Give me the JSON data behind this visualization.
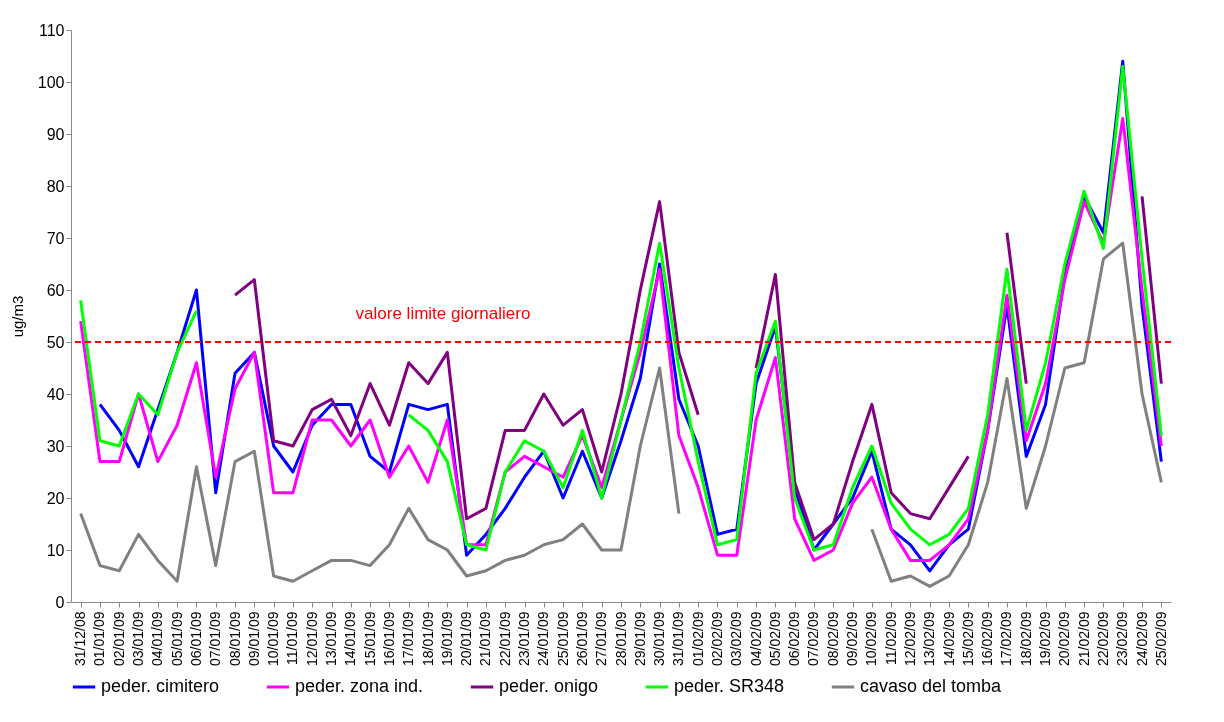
{
  "chart_data": {
    "type": "line",
    "ylabel": "ug/m3",
    "categories": [
      "31/12/08",
      "01/01/09",
      "02/01/09",
      "03/01/09",
      "04/01/09",
      "05/01/09",
      "06/01/09",
      "07/01/09",
      "08/01/09",
      "09/01/09",
      "10/01/09",
      "11/01/09",
      "12/01/09",
      "13/01/09",
      "14/01/09",
      "15/01/09",
      "16/01/09",
      "17/01/09",
      "18/01/09",
      "19/01/09",
      "20/01/09",
      "21/01/09",
      "22/01/09",
      "23/01/09",
      "24/01/09",
      "25/01/09",
      "26/01/09",
      "27/01/09",
      "28/01/09",
      "29/01/09",
      "30/01/09",
      "31/01/09",
      "01/02/09",
      "02/02/09",
      "03/02/09",
      "04/02/09",
      "05/02/09",
      "06/02/09",
      "07/02/09",
      "08/02/09",
      "09/02/09",
      "10/02/09",
      "11/02/09",
      "12/02/09",
      "13/02/09",
      "14/02/09",
      "15/02/09",
      "16/02/09",
      "17/02/09",
      "18/02/09",
      "19/02/09",
      "20/02/09",
      "21/02/09",
      "22/02/09",
      "23/02/09",
      "24/02/09",
      "25/02/09"
    ],
    "series": [
      {
        "name": "peder. cimitero",
        "color": "#0000ff",
        "values": [
          null,
          38,
          33,
          26,
          37,
          48,
          60,
          21,
          44,
          48,
          30,
          25,
          34,
          38,
          38,
          28,
          25,
          38,
          37,
          38,
          9,
          13,
          18,
          24,
          29,
          20,
          29,
          20,
          31,
          43,
          65,
          39,
          30,
          13,
          14,
          42,
          53,
          22,
          10,
          15,
          20,
          29,
          14,
          11,
          6,
          11,
          14,
          33,
          57,
          28,
          38,
          63,
          78,
          71,
          104,
          57,
          27
        ]
      },
      {
        "name": "peder. zona ind.",
        "color": "#ff00ff",
        "values": [
          54,
          27,
          27,
          40,
          27,
          34,
          46,
          24,
          41,
          48,
          21,
          21,
          35,
          35,
          30,
          35,
          24,
          30,
          23,
          35,
          11,
          11,
          25,
          28,
          26,
          24,
          32,
          22,
          35,
          48,
          64,
          32,
          22,
          9,
          9,
          35,
          47,
          16,
          8,
          10,
          19,
          24,
          14,
          8,
          8,
          11,
          16,
          33,
          59,
          31,
          42,
          62,
          77,
          69,
          93,
          60,
          30
        ]
      },
      {
        "name": "peder. onigo",
        "color": "#800080",
        "values": [
          null,
          null,
          null,
          null,
          null,
          null,
          null,
          null,
          59,
          62,
          31,
          30,
          37,
          39,
          32,
          42,
          34,
          46,
          42,
          48,
          16,
          18,
          33,
          33,
          40,
          34,
          37,
          25,
          40,
          60,
          77,
          48,
          36,
          null,
          null,
          45,
          63,
          23,
          12,
          15,
          27,
          38,
          21,
          17,
          16,
          22,
          28,
          null,
          71,
          42,
          null,
          null,
          null,
          null,
          null,
          78,
          42
        ]
      },
      {
        "name": "peder. SR348",
        "color": "#00ff00",
        "values": [
          58,
          31,
          30,
          40,
          36,
          48,
          56,
          null,
          null,
          null,
          null,
          null,
          null,
          null,
          null,
          null,
          null,
          36,
          33,
          27,
          11,
          10,
          25,
          31,
          29,
          22,
          33,
          20,
          35,
          50,
          69,
          45,
          27,
          11,
          12,
          44,
          54,
          20,
          10,
          11,
          22,
          30,
          19,
          14,
          11,
          13,
          18,
          36,
          64,
          33,
          46,
          65,
          79,
          68,
          103,
          66,
          32
        ]
      },
      {
        "name": "cavaso del tomba",
        "color": "#808080",
        "values": [
          17,
          7,
          6,
          13,
          8,
          4,
          26,
          7,
          27,
          29,
          5,
          4,
          6,
          8,
          8,
          7,
          11,
          18,
          12,
          10,
          5,
          6,
          8,
          9,
          11,
          12,
          15,
          10,
          10,
          30,
          45,
          17,
          null,
          null,
          null,
          null,
          null,
          null,
          null,
          null,
          null,
          14,
          4,
          5,
          3,
          5,
          11,
          23,
          43,
          18,
          30,
          45,
          46,
          66,
          69,
          40,
          23
        ]
      }
    ],
    "ylim": [
      0,
      110
    ],
    "yticks": [
      0,
      10,
      20,
      30,
      40,
      50,
      60,
      70,
      80,
      90,
      100,
      110
    ],
    "ref_lines": [
      {
        "axis": "y",
        "value": 50,
        "label": "valore limite giornaliero",
        "color": "#ff0000",
        "line_style": "dashed"
      }
    ],
    "legend": "bottom",
    "line_style": "solid",
    "marker": "none"
  }
}
